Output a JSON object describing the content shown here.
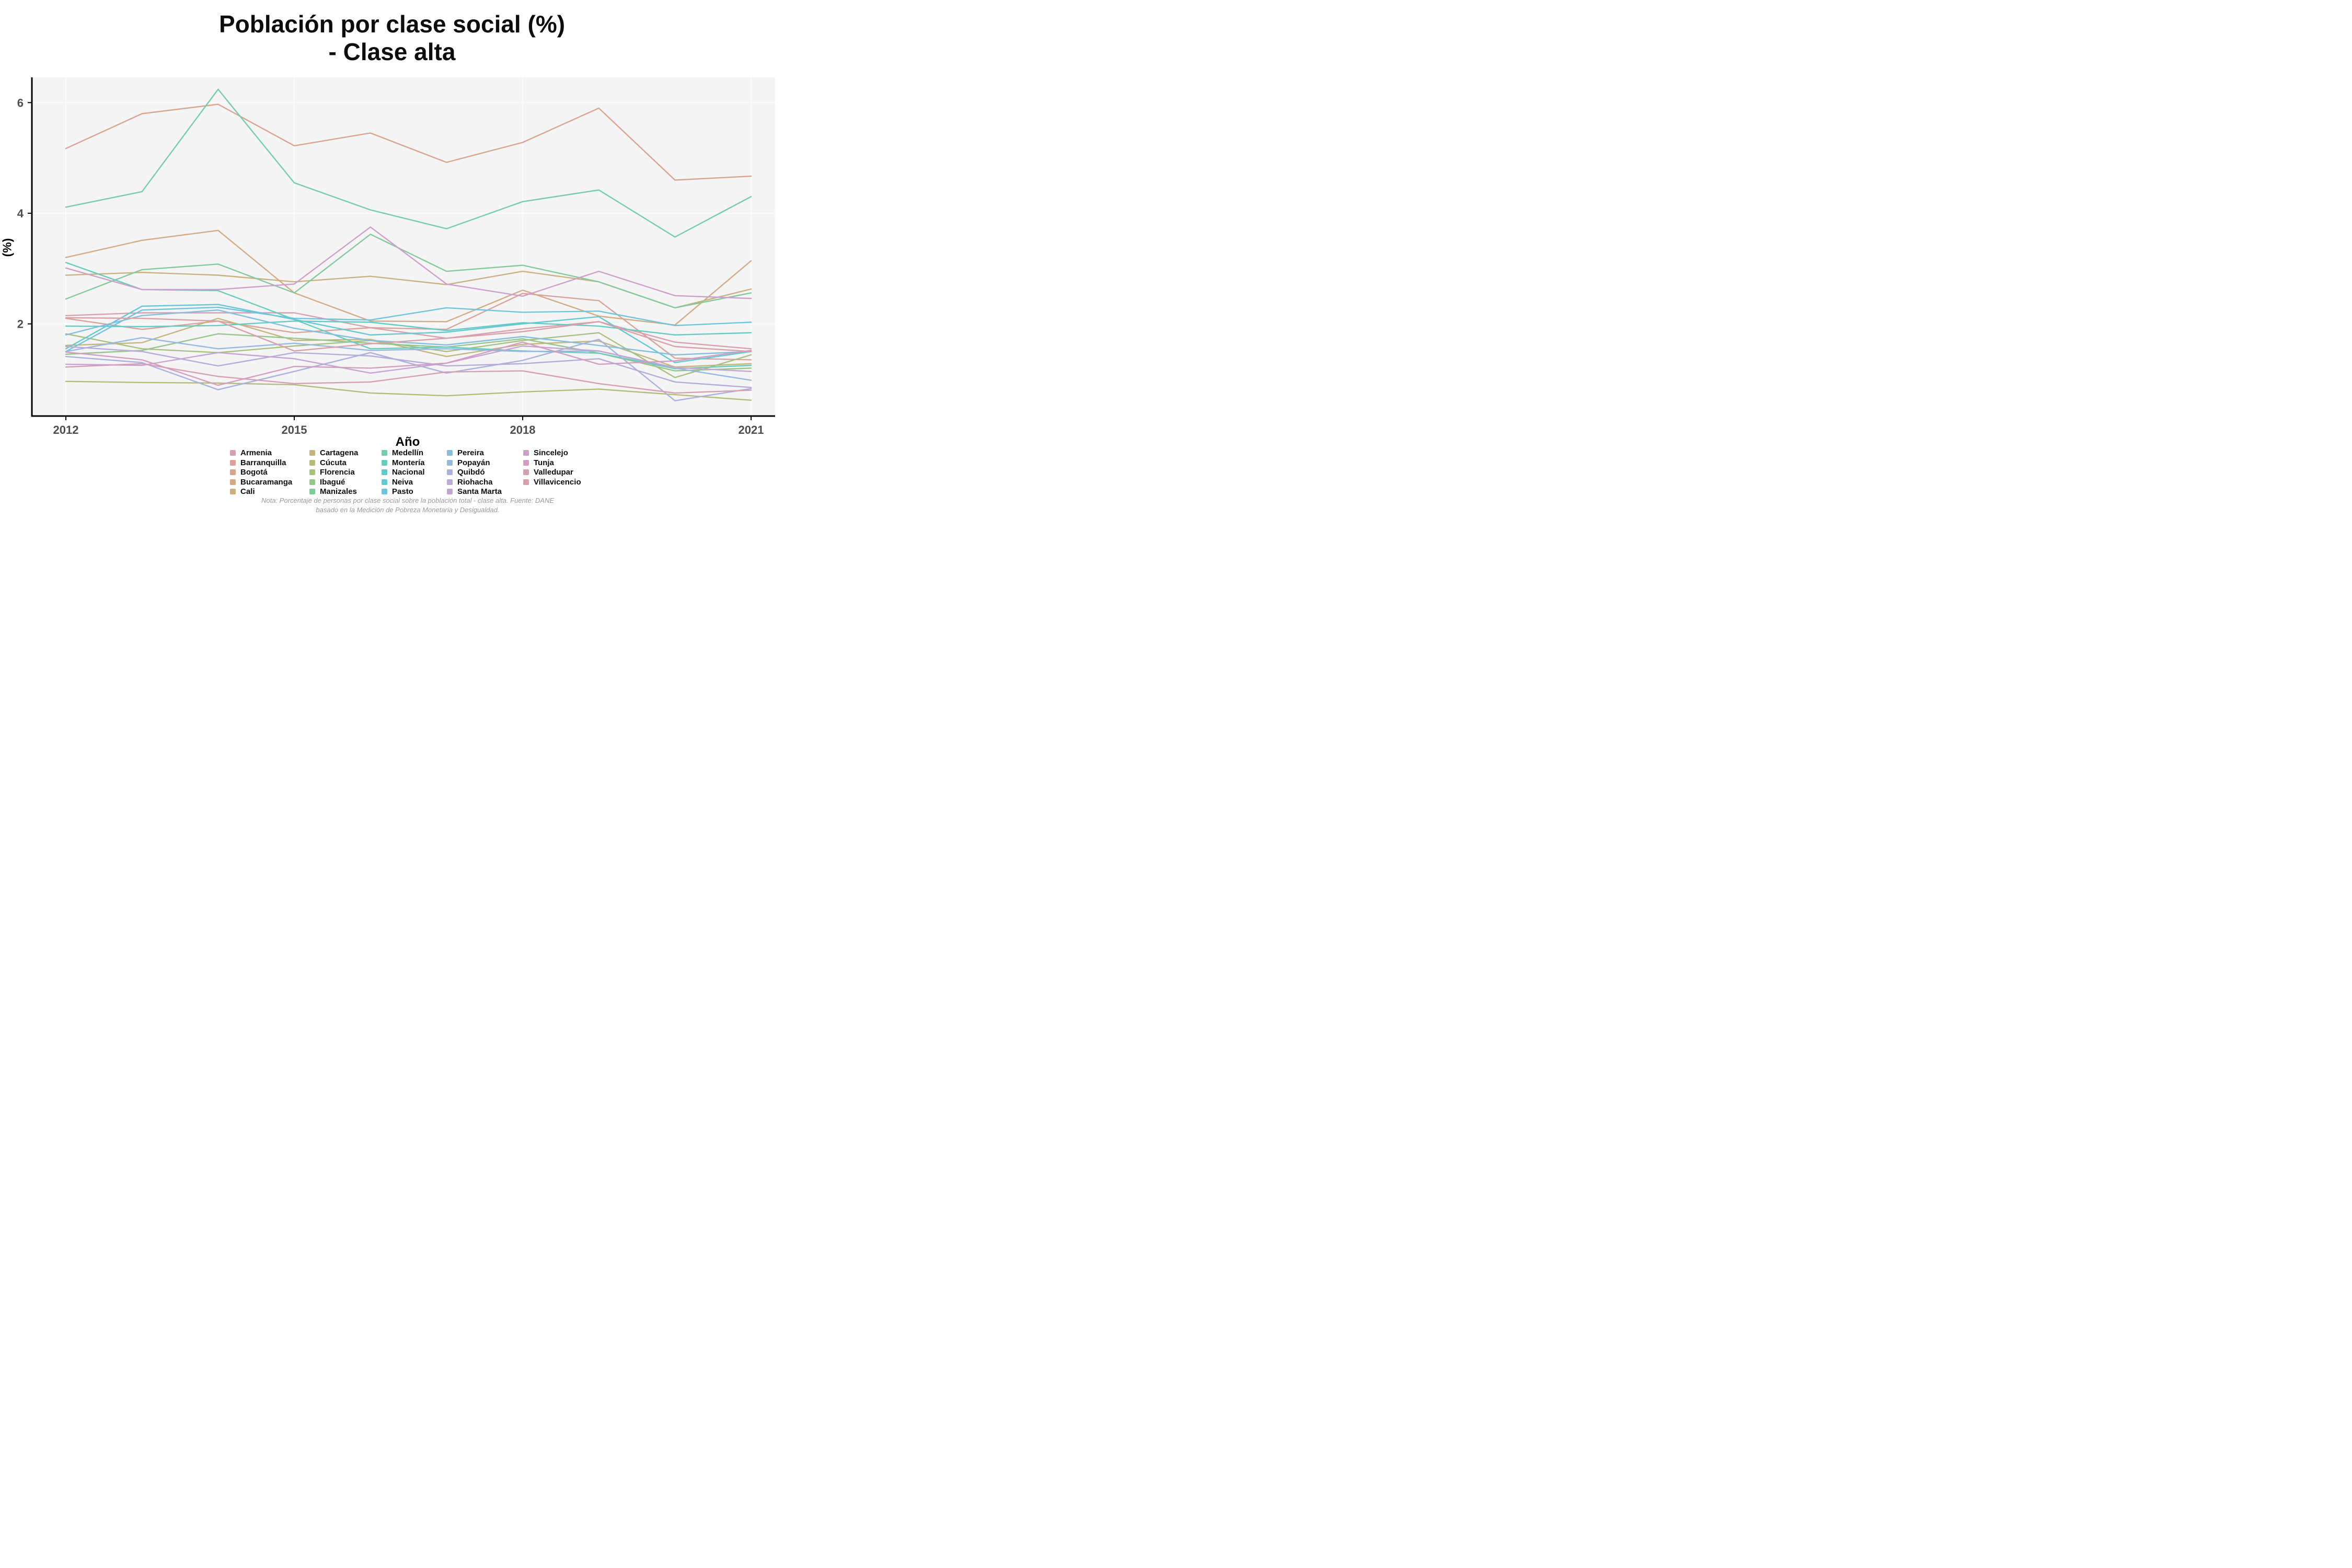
{
  "title": {
    "line1": "Población por clase social (%)",
    "line2": "- Clase alta"
  },
  "footnote": {
    "line1": "Nota: Porcentaje de personas por clase social sobre la población total - clase alta. Fuente: DANE",
    "line2": "basado en la Medición de Pobreza Monetaria y Desigualdad."
  },
  "chart_data": {
    "type": "line",
    "title": "Población por clase social (%) - Clase alta",
    "xlabel": "Año",
    "ylabel": "(%)",
    "x": [
      2012,
      2013,
      2014,
      2015,
      2016,
      2017,
      2018,
      2019,
      2020,
      2021
    ],
    "xticks": [
      "2012",
      "2015",
      "2018",
      "2021"
    ],
    "xtick_years": [
      2012,
      2015,
      2018,
      2021
    ],
    "yticks": [
      2,
      4,
      6
    ],
    "ylim": [
      0.3,
      6.5
    ],
    "grid": "faint major gridlines only",
    "panel_background": "#f4f4f4",
    "gridline_color": "#fbfbfb",
    "axis_line_color": "#000000",
    "tick_label_color": "#4d4d4d",
    "legend_position": "bottom-center, 5 columns",
    "series": [
      {
        "name": "Armenia",
        "color": "#d5a1b1",
        "values": [
          2.15,
          2.2,
          2.2,
          2.2,
          1.93,
          1.74,
          1.91,
          2.04,
          1.67,
          1.55
        ]
      },
      {
        "name": "Barranquilla",
        "color": "#d9a29b",
        "values": [
          2.1,
          1.9,
          2.05,
          1.84,
          1.93,
          1.9,
          2.55,
          2.42,
          1.38,
          1.35
        ]
      },
      {
        "name": "Bogotá",
        "color": "#d8a48f",
        "values": [
          5.17,
          5.8,
          5.97,
          5.22,
          5.45,
          4.92,
          5.28,
          5.9,
          4.6,
          4.67
        ]
      },
      {
        "name": "Bucaramanga",
        "color": "#d2ab85",
        "values": [
          3.2,
          3.51,
          3.69,
          2.56,
          2.05,
          2.04,
          2.61,
          2.14,
          1.98,
          3.14
        ]
      },
      {
        "name": "Cali",
        "color": "#c9b180",
        "values": [
          2.88,
          2.93,
          2.88,
          2.76,
          2.86,
          2.71,
          2.95,
          2.76,
          2.29,
          2.63
        ]
      },
      {
        "name": "Cartagena",
        "color": "#c2b67c",
        "values": [
          1.61,
          1.66,
          2.1,
          1.7,
          1.72,
          1.41,
          1.63,
          1.69,
          1.22,
          1.28
        ]
      },
      {
        "name": "Cúcuta",
        "color": "#b5bb7b",
        "values": [
          0.96,
          0.94,
          0.93,
          0.9,
          0.75,
          0.7,
          0.77,
          0.82,
          0.72,
          0.62
        ]
      },
      {
        "name": "Florencia",
        "color": "#a8c080",
        "values": [
          1.82,
          1.55,
          1.48,
          1.6,
          1.7,
          1.5,
          1.7,
          1.84,
          1.03,
          1.44
        ]
      },
      {
        "name": "Ibagué",
        "color": "#97c58c",
        "values": [
          1.45,
          1.52,
          1.82,
          1.74,
          1.65,
          1.58,
          1.73,
          1.47,
          1.15,
          1.2
        ]
      },
      {
        "name": "Manizales",
        "color": "#83c99c",
        "values": [
          2.45,
          2.98,
          3.08,
          2.56,
          3.62,
          2.95,
          3.06,
          2.76,
          2.29,
          2.56
        ]
      },
      {
        "name": "Medellín",
        "color": "#74ccab",
        "values": [
          4.11,
          4.39,
          6.24,
          4.55,
          4.06,
          3.72,
          4.21,
          4.42,
          3.57,
          4.3
        ]
      },
      {
        "name": "Montería",
        "color": "#68ccba",
        "values": [
          3.11,
          2.62,
          2.6,
          2.08,
          1.55,
          1.58,
          1.51,
          1.47,
          1.19,
          1.25
        ]
      },
      {
        "name": "Nacional",
        "color": "#62cbc6",
        "values": [
          1.96,
          1.95,
          1.97,
          2.05,
          2.03,
          1.88,
          2.02,
          1.96,
          1.8,
          1.84
        ]
      },
      {
        "name": "Neiva",
        "color": "#64c8d2",
        "values": [
          1.55,
          2.32,
          2.35,
          2.08,
          1.8,
          1.85,
          2.0,
          2.13,
          1.3,
          1.5
        ]
      },
      {
        "name": "Pasto",
        "color": "#6fc4db",
        "values": [
          1.5,
          2.25,
          2.3,
          2.1,
          2.07,
          2.29,
          2.21,
          2.23,
          1.97,
          2.03
        ]
      },
      {
        "name": "Pereira",
        "color": "#83bedf",
        "values": [
          1.8,
          2.15,
          2.25,
          1.92,
          1.7,
          1.62,
          1.77,
          1.61,
          1.44,
          1.5
        ]
      },
      {
        "name": "Popayán",
        "color": "#97b8e0",
        "values": [
          1.5,
          1.75,
          1.55,
          1.65,
          1.52,
          1.55,
          1.5,
          1.51,
          1.2,
          0.98
        ]
      },
      {
        "name": "Quibdó",
        "color": "#a9b1dd",
        "values": [
          1.41,
          1.3,
          0.81,
          1.14,
          1.48,
          1.11,
          1.34,
          1.72,
          0.61,
          0.83
        ]
      },
      {
        "name": "Riohacha",
        "color": "#b8aad9",
        "values": [
          1.59,
          1.5,
          1.24,
          1.48,
          1.42,
          1.24,
          1.28,
          1.37,
          0.95,
          0.85
        ]
      },
      {
        "name": "Santa Marta",
        "color": "#c4a4d3",
        "values": [
          1.27,
          1.25,
          1.48,
          1.37,
          1.11,
          1.29,
          1.6,
          1.51,
          1.21,
          1.14
        ]
      },
      {
        "name": "Sincelejo",
        "color": "#cd9fcb",
        "values": [
          3.01,
          2.62,
          2.62,
          2.72,
          3.75,
          2.72,
          2.5,
          2.95,
          2.51,
          2.46
        ]
      },
      {
        "name": "Tunja",
        "color": "#d39dc2",
        "values": [
          1.49,
          1.35,
          0.89,
          1.23,
          1.2,
          1.29,
          1.67,
          1.27,
          1.33,
          1.52
        ]
      },
      {
        "name": "Valledupar",
        "color": "#d79eb7",
        "values": [
          1.22,
          1.28,
          1.05,
          0.92,
          0.95,
          1.13,
          1.15,
          0.92,
          0.75,
          0.8
        ]
      },
      {
        "name": "Villavicencio",
        "color": "#d8a0a9",
        "values": [
          2.11,
          2.1,
          2.05,
          1.51,
          1.64,
          1.74,
          1.86,
          2.04,
          1.59,
          1.5
        ]
      }
    ]
  }
}
